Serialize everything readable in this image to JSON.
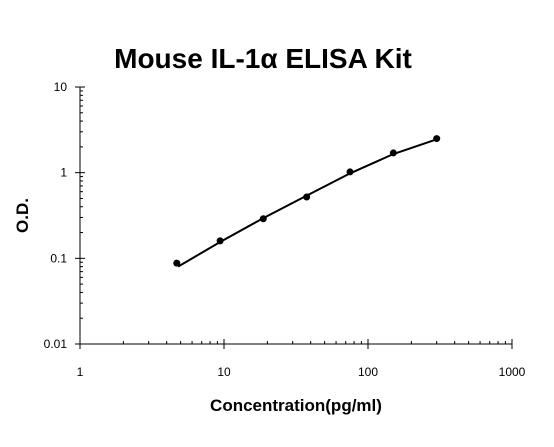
{
  "chart_data": {
    "type": "scatter",
    "title": "Mouse IL-1α ELISA Kit",
    "xlabel": "Concentration(pg/ml)",
    "ylabel": "O.D.",
    "x_scale": "log",
    "y_scale": "log",
    "xlim": [
      1,
      1000
    ],
    "ylim": [
      0.01,
      10
    ],
    "x_ticks": [
      1,
      10,
      100,
      1000
    ],
    "x_tick_labels": [
      "1",
      "10",
      "100",
      "1000"
    ],
    "y_ticks": [
      0.01,
      0.1,
      1,
      10
    ],
    "y_tick_labels": [
      "0.01",
      "0.1",
      "1",
      "10"
    ],
    "grid": false,
    "series": [
      {
        "x": [
          4.7,
          9.4,
          18.75,
          37.5,
          75,
          150,
          300
        ],
        "y": [
          0.088,
          0.16,
          0.29,
          0.52,
          1.02,
          1.7,
          2.5
        ]
      }
    ],
    "fit_line": {
      "x": [
        4.8,
        9.4,
        18.75,
        37.5,
        75,
        150,
        300
      ],
      "y": [
        0.08,
        0.155,
        0.295,
        0.54,
        0.98,
        1.65,
        2.45
      ]
    }
  }
}
